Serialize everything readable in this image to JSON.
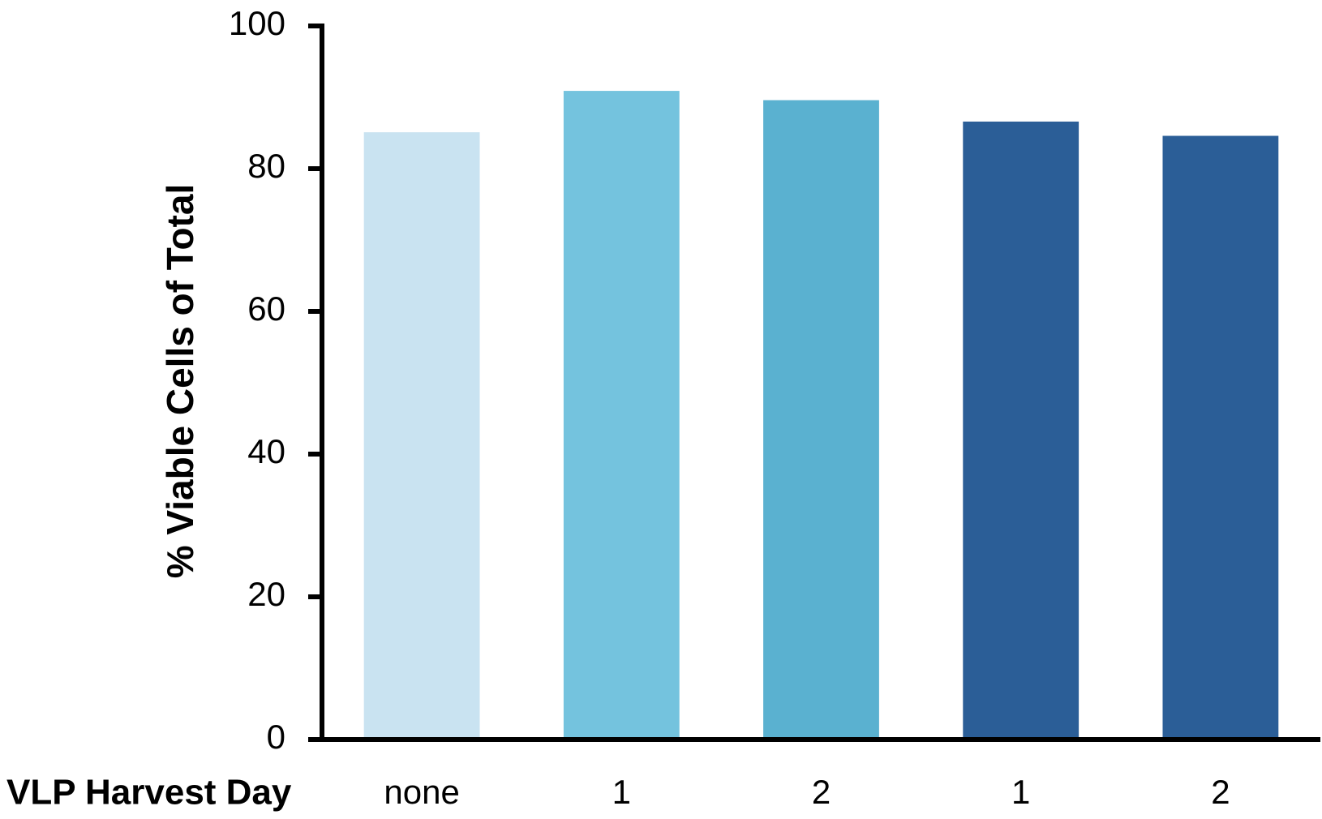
{
  "chart_data": {
    "type": "bar",
    "y_label": "% Viable Cells of Total",
    "x_label": "VLP Harvest Day",
    "categories": [
      "none",
      "1",
      "2",
      "1",
      "2"
    ],
    "values": [
      85.1,
      90.9,
      89.6,
      86.6,
      84.6
    ],
    "colors": [
      "#c9e3f1",
      "#74c3de",
      "#5ab1d0",
      "#2b5e97",
      "#2b5e97"
    ],
    "ylim": [
      0,
      100
    ],
    "yticks": [
      0,
      20,
      40,
      60,
      80,
      100
    ],
    "grid": false
  }
}
